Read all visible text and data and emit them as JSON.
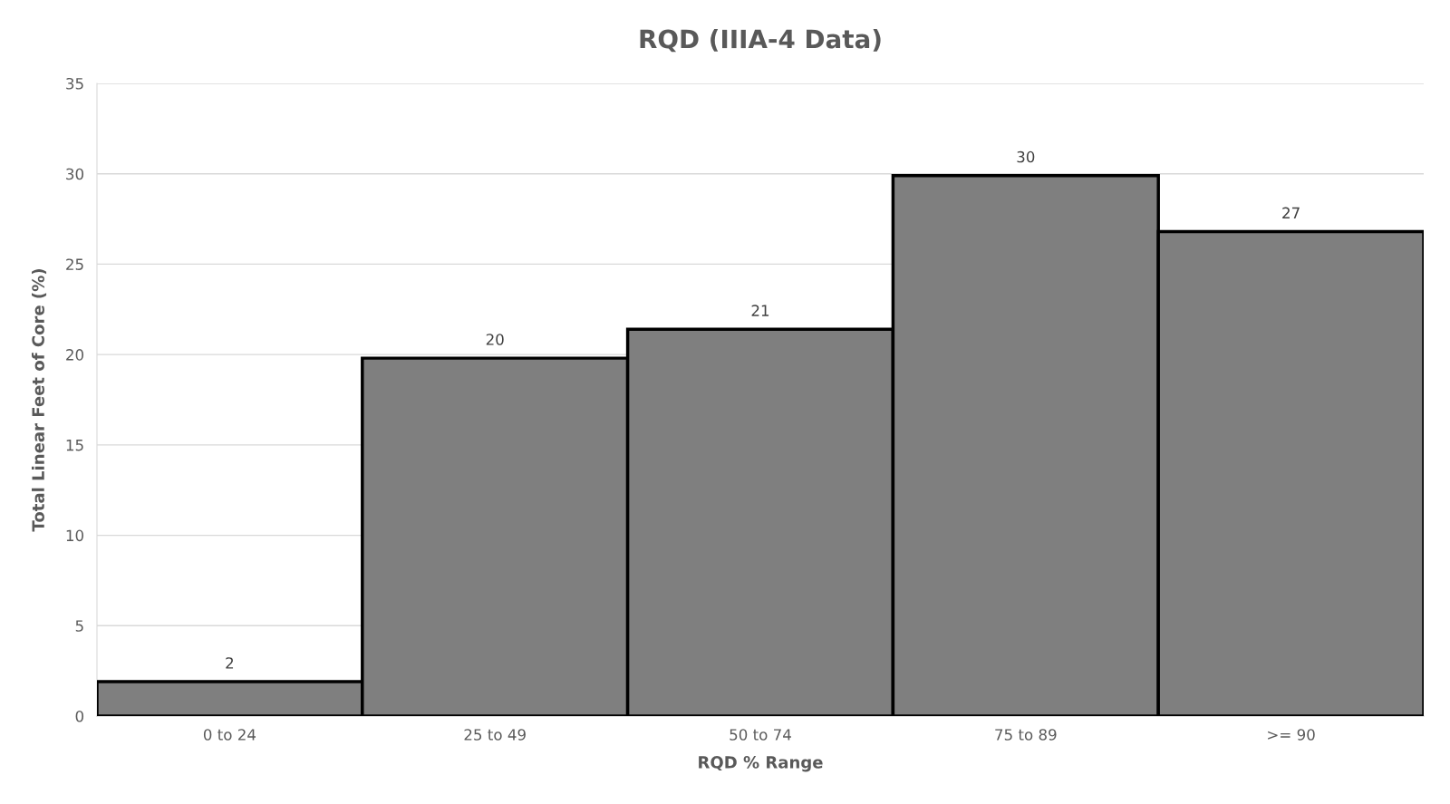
{
  "chart_data": {
    "type": "bar",
    "title": "RQD (IIIA-4 Data)",
    "xlabel": "RQD % Range",
    "ylabel": "Total Linear Feet of Core (%)",
    "categories": [
      "0 to 24",
      "25 to 49",
      "50 to 74",
      "75 to 89",
      ">= 90"
    ],
    "values": [
      1.9,
      19.8,
      21.4,
      29.9,
      26.8
    ],
    "value_labels": [
      "2",
      "20",
      "21",
      "30",
      "27"
    ],
    "color": "#7f7f7f",
    "ylim": [
      0,
      35
    ],
    "yticks": [
      0,
      5,
      10,
      15,
      20,
      25,
      30,
      35
    ],
    "grid": "y"
  }
}
